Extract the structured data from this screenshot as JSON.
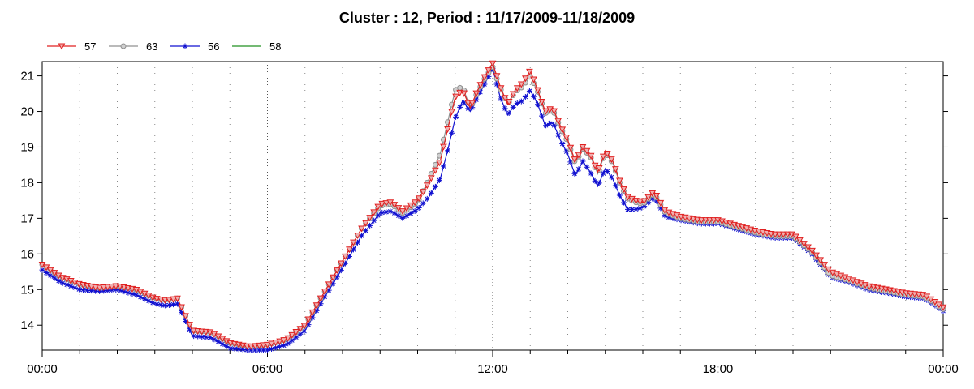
{
  "chart_data": {
    "type": "line",
    "title": "Cluster : 12, Period : 11/17/2009-11/18/2009",
    "xlabel": "",
    "ylabel": "",
    "x_ticks": [
      "00:00",
      "06:00",
      "12:00",
      "18:00",
      "00:00"
    ],
    "x_range_hours": [
      0,
      24
    ],
    "ylim": [
      13.3,
      21.4
    ],
    "y_ticks": [
      14,
      15,
      16,
      17,
      18,
      19,
      20,
      21
    ],
    "grid": "vertical dotted",
    "legend_position": "top-left",
    "x_hours": [
      0,
      0.5,
      1,
      1.5,
      2,
      2.5,
      3,
      3.3,
      3.6,
      4,
      4.5,
      5,
      5.5,
      6,
      6.5,
      7,
      7.5,
      8,
      8.5,
      9,
      9.3,
      9.6,
      10,
      10.3,
      10.6,
      10.8,
      11,
      11.2,
      11.4,
      11.6,
      11.8,
      12,
      12.2,
      12.4,
      12.6,
      12.8,
      13,
      13.2,
      13.4,
      13.6,
      13.8,
      14,
      14.2,
      14.4,
      14.6,
      14.8,
      15,
      15.2,
      15.4,
      15.6,
      15.8,
      16,
      16.3,
      16.6,
      17,
      17.5,
      18,
      18.5,
      19,
      19.5,
      20,
      20.5,
      21,
      21.5,
      22,
      22.5,
      23,
      23.5,
      24
    ],
    "series": [
      {
        "name": "57",
        "color": "#e02020",
        "marker": "triangle-down",
        "values": [
          15.7,
          15.35,
          15.15,
          15.05,
          15.1,
          15.0,
          14.75,
          14.7,
          14.75,
          13.85,
          13.8,
          13.5,
          13.4,
          13.45,
          13.6,
          14.0,
          14.9,
          15.8,
          16.7,
          17.4,
          17.45,
          17.2,
          17.5,
          18.0,
          18.6,
          19.5,
          20.4,
          20.6,
          20.1,
          20.6,
          21.0,
          21.35,
          20.7,
          20.2,
          20.6,
          20.8,
          21.15,
          20.6,
          20.0,
          20.1,
          19.6,
          19.2,
          18.6,
          19.0,
          18.8,
          18.3,
          18.9,
          18.6,
          18.0,
          17.6,
          17.5,
          17.45,
          17.75,
          17.2,
          17.05,
          16.95,
          16.95,
          16.8,
          16.65,
          16.55,
          16.55,
          16.1,
          15.5,
          15.3,
          15.1,
          15.0,
          14.9,
          14.85,
          14.5
        ]
      },
      {
        "name": "63",
        "color": "#909090",
        "marker": "circle",
        "values": [
          15.7,
          15.35,
          15.15,
          15.05,
          15.1,
          15.0,
          14.75,
          14.7,
          14.75,
          13.85,
          13.8,
          13.5,
          13.4,
          13.45,
          13.6,
          14.0,
          14.9,
          15.8,
          16.7,
          17.35,
          17.4,
          17.15,
          17.45,
          18.1,
          18.8,
          19.7,
          20.6,
          20.7,
          20.1,
          20.55,
          20.95,
          21.25,
          20.65,
          20.2,
          20.55,
          20.7,
          21.0,
          20.55,
          19.95,
          20.05,
          19.55,
          19.15,
          18.55,
          18.95,
          18.75,
          18.25,
          18.85,
          18.55,
          17.95,
          17.55,
          17.45,
          17.4,
          17.7,
          17.15,
          17.0,
          16.9,
          16.9,
          16.75,
          16.6,
          16.5,
          16.5,
          16.05,
          15.4,
          15.25,
          15.05,
          14.95,
          14.85,
          14.8,
          14.45
        ]
      },
      {
        "name": "56",
        "color": "#1010d0",
        "marker": "asterisk",
        "values": [
          15.55,
          15.2,
          15.0,
          14.95,
          15.0,
          14.85,
          14.6,
          14.55,
          14.6,
          13.7,
          13.65,
          13.35,
          13.3,
          13.3,
          13.45,
          13.85,
          14.75,
          15.6,
          16.5,
          17.15,
          17.2,
          17.0,
          17.25,
          17.6,
          18.1,
          18.9,
          19.8,
          20.3,
          20.0,
          20.4,
          20.8,
          21.2,
          20.4,
          19.9,
          20.2,
          20.3,
          20.6,
          20.2,
          19.6,
          19.7,
          19.2,
          18.8,
          18.2,
          18.6,
          18.3,
          17.9,
          18.4,
          18.1,
          17.6,
          17.25,
          17.25,
          17.3,
          17.6,
          17.05,
          16.95,
          16.85,
          16.85,
          16.7,
          16.55,
          16.45,
          16.45,
          16.0,
          15.35,
          15.2,
          15.0,
          14.9,
          14.8,
          14.75,
          14.4
        ]
      },
      {
        "name": "58",
        "color": "#209020",
        "marker": "none",
        "values": []
      }
    ]
  }
}
